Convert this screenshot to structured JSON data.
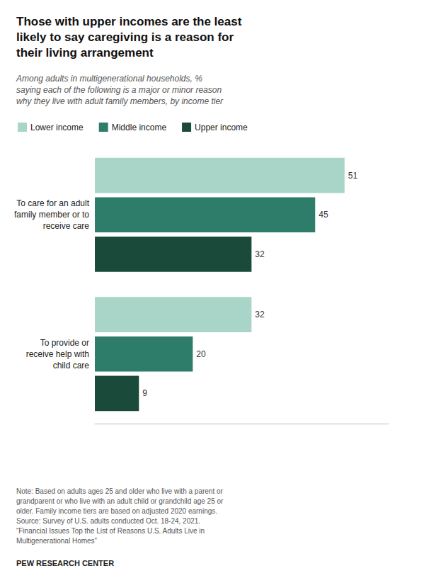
{
  "chart_data": {
    "type": "bar",
    "orientation": "horizontal",
    "title": "Those with upper incomes are the least\nlikely to say caregiving is a reason for\ntheir living arrangement",
    "subtitle": "Among adults in multigenerational households, %\nsaying each of the following is a major or minor reason\nwhy they live with adult family members, by income tier",
    "categories": [
      "To care for an adult\nfamily member or to\nreceive care",
      "To provide or\nreceive help with\nchild care"
    ],
    "series": [
      {
        "name": "Lower income",
        "color": "#a8d5c8",
        "values": [
          51,
          32
        ]
      },
      {
        "name": "Middle income",
        "color": "#2e7d6b",
        "values": [
          45,
          20
        ]
      },
      {
        "name": "Upper income",
        "color": "#1a4a3a",
        "values": [
          32,
          9
        ]
      }
    ],
    "xlim": [
      0,
      60
    ],
    "data_labels": true,
    "tick_labels": false,
    "grid": false,
    "legend": "top",
    "note": "Note: Based on adults ages 25 and older who live with a parent or\ngrandparent or who live with an adult child or grandchild age 25 or\nolder. Family income tiers are based on adjusted 2020 earnings.\nSource: Survey of U.S. adults conducted Oct. 18-24, 2021.\n“Financial Issues Top the List of Reasons U.S. Adults Live in\nMultigenerational Homes”",
    "source": "PEW RESEARCH CENTER"
  }
}
